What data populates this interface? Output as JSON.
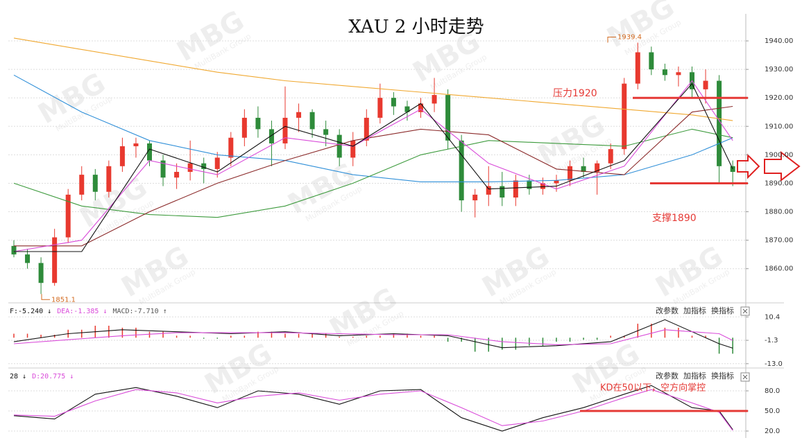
{
  "header": {
    "title": "XAU 2 小时走势"
  },
  "watermark": {
    "logo": "MBG",
    "text": "MultiBank Group"
  },
  "toolbar": {
    "buttons": [
      "改参数",
      "加指标",
      "换指标"
    ]
  },
  "chart_data": [
    {
      "type": "candlestick",
      "up_color": "#e8392f",
      "down_color": "#2e8b3a",
      "grid": true,
      "ylim": [
        1848,
        1949.5
      ],
      "yticks": [
        {
          "value": 1860,
          "label": "1860.00"
        },
        {
          "value": 1870,
          "label": "1870.00"
        },
        {
          "value": 1880,
          "label": "1880.00"
        },
        {
          "value": 1890,
          "label": "1890.00"
        },
        {
          "value": 1900,
          "label": "1900.00"
        },
        {
          "value": 1910,
          "label": "1910.00"
        },
        {
          "value": 1920,
          "label": "1920.00"
        },
        {
          "value": 1930,
          "label": "1930.00"
        },
        {
          "value": 1940,
          "label": "1940.00"
        }
      ],
      "ohlc": [
        [
          1868,
          1870,
          1864,
          1865
        ],
        [
          1865,
          1867,
          1860,
          1862
        ],
        [
          1862,
          1864,
          1851.1,
          1855
        ],
        [
          1855,
          1874,
          1854,
          1871
        ],
        [
          1871,
          1888,
          1869,
          1886
        ],
        [
          1886,
          1896,
          1884,
          1893
        ],
        [
          1893,
          1895,
          1884,
          1887
        ],
        [
          1887,
          1898,
          1885,
          1896
        ],
        [
          1896,
          1906,
          1894,
          1903
        ],
        [
          1903,
          1906,
          1899,
          1904
        ],
        [
          1904,
          1905,
          1896,
          1898
        ],
        [
          1898,
          1900,
          1889,
          1892
        ],
        [
          1892,
          1897,
          1888,
          1894
        ],
        [
          1894,
          1905,
          1891,
          1897
        ],
        [
          1897,
          1899,
          1890,
          1895
        ],
        [
          1895,
          1901,
          1892,
          1899
        ],
        [
          1899,
          1908,
          1896,
          1906
        ],
        [
          1906,
          1916,
          1903,
          1913
        ],
        [
          1913,
          1917,
          1906,
          1909
        ],
        [
          1909,
          1912,
          1896,
          1904
        ],
        [
          1904,
          1924,
          1902,
          1913
        ],
        [
          1913,
          1918,
          1908,
          1915
        ],
        [
          1915,
          1916,
          1906,
          1909
        ],
        [
          1909,
          1912,
          1903,
          1907
        ],
        [
          1907,
          1909,
          1896,
          1899
        ],
        [
          1899,
          1908,
          1896,
          1905
        ],
        [
          1905,
          1916,
          1903,
          1913
        ],
        [
          1913,
          1925,
          1911,
          1920
        ],
        [
          1920,
          1922,
          1914,
          1917
        ],
        [
          1917,
          1919,
          1912,
          1915
        ],
        [
          1915,
          1920,
          1913,
          1918
        ],
        [
          1918,
          1927,
          1915,
          1921
        ],
        [
          1921,
          1923,
          1902,
          1905
        ],
        [
          1905,
          1907,
          1880,
          1884
        ],
        [
          1884,
          1888,
          1878,
          1886
        ],
        [
          1886,
          1896,
          1882,
          1889
        ],
        [
          1889,
          1894,
          1882,
          1885
        ],
        [
          1885,
          1893,
          1882,
          1891
        ],
        [
          1891,
          1893,
          1886,
          1888
        ],
        [
          1888,
          1892,
          1886,
          1890
        ],
        [
          1890,
          1893,
          1887,
          1891
        ],
        [
          1891,
          1898,
          1889,
          1896
        ],
        [
          1896,
          1899,
          1892,
          1894
        ],
        [
          1894,
          1898,
          1886,
          1897
        ],
        [
          1897,
          1904,
          1895,
          1902
        ],
        [
          1902,
          1927,
          1900,
          1925
        ],
        [
          1925,
          1939.4,
          1923,
          1936
        ],
        [
          1936,
          1938,
          1928,
          1930
        ],
        [
          1930,
          1932,
          1926,
          1928
        ],
        [
          1928,
          1931,
          1924,
          1929
        ],
        [
          1929,
          1931,
          1920,
          1923
        ],
        [
          1923,
          1930,
          1918,
          1926
        ],
        [
          1926,
          1928,
          1890,
          1896
        ],
        [
          1896,
          1898,
          1889,
          1894
        ]
      ],
      "lines": [
        {
          "color": "#f0a830",
          "x": [
            0,
            5,
            10,
            15,
            20,
            25,
            30,
            35,
            40,
            45,
            50,
            53
          ],
          "values": [
            1941,
            1937,
            1933,
            1929,
            1926,
            1924,
            1922,
            1920,
            1918,
            1916,
            1914,
            1912
          ]
        },
        {
          "color": "#2f8fd8",
          "x": [
            0,
            5,
            10,
            15,
            20,
            25,
            30,
            35,
            40,
            45,
            50,
            53
          ],
          "values": [
            1928,
            1915,
            1905,
            1900,
            1898,
            1893,
            1890.5,
            1890.5,
            1891,
            1893,
            1900,
            1906
          ]
        },
        {
          "color": "#3c9a3c",
          "x": [
            0,
            5,
            10,
            15,
            20,
            25,
            30,
            35,
            40,
            45,
            50,
            53
          ],
          "values": [
            1890,
            1882,
            1879,
            1878,
            1882,
            1890,
            1900,
            1905,
            1904,
            1903,
            1909,
            1906
          ]
        },
        {
          "color": "#8b2a2a",
          "x": [
            0,
            5,
            10,
            15,
            20,
            25,
            30,
            35,
            40,
            45,
            50,
            53
          ],
          "values": [
            1868,
            1868,
            1880,
            1890,
            1898,
            1905,
            1909,
            1907,
            1895,
            1893,
            1915,
            1917
          ]
        },
        {
          "color": "#d94ad9",
          "x": [
            0,
            5,
            10,
            15,
            20,
            25,
            30,
            35,
            40,
            45,
            50,
            53
          ],
          "values": [
            1866,
            1870,
            1898,
            1893,
            1906,
            1903,
            1916,
            1897,
            1888,
            1896,
            1926,
            1905
          ]
        },
        {
          "color": "#111111",
          "x": [
            0,
            5,
            10,
            15,
            20,
            25,
            30,
            35,
            40,
            45,
            50,
            53
          ],
          "values": [
            1866,
            1866,
            1902,
            1894,
            1910,
            1903,
            1918,
            1888,
            1889,
            1898,
            1925,
            1895
          ]
        }
      ],
      "annotations": [
        {
          "text": "压力1920",
          "value": 1920
        },
        {
          "text": "支撑1890",
          "value": 1890
        },
        {
          "text": "1939.4",
          "value": 1939.4
        },
        {
          "text": "1851.1",
          "value": 1851.1
        }
      ]
    },
    {
      "type": "macd",
      "legend": [
        "F:-5.240 ↓",
        "DEA:-1.385 ↓",
        "MACD:-7.710 ↑"
      ],
      "ylim": [
        -14.8,
        16.4
      ],
      "yticks": [
        10.4,
        -1.3,
        {
          "value": -13,
          "label": "-13.0"
        }
      ],
      "grid": true,
      "up_color": "#e8392f",
      "down_color": "#2e8b3a",
      "histogram": {
        "x": [
          0,
          2,
          4,
          6,
          8,
          10,
          12,
          14,
          16,
          18,
          20,
          22,
          24,
          26,
          28,
          30,
          32,
          34,
          36,
          38,
          40,
          42,
          44,
          46,
          48,
          50,
          52
        ],
        "values": [
          2,
          1.5,
          4,
          6,
          5,
          3,
          1,
          -0.5,
          1,
          3,
          2,
          2,
          0.5,
          1,
          2,
          1,
          -2,
          -7,
          -6,
          -4,
          -2,
          -1,
          1,
          7,
          5,
          1,
          -8
        ]
      },
      "lines": [
        {
          "color": "#111111",
          "x": [
            0,
            4,
            8,
            12,
            16,
            20,
            24,
            28,
            32,
            36,
            40,
            44,
            48,
            52,
            53
          ],
          "values": [
            -2,
            2,
            4,
            3,
            2,
            3,
            1,
            2,
            1,
            -5,
            -4,
            -2,
            9,
            -3,
            -5.24
          ]
        },
        {
          "color": "#d94ad9",
          "x": [
            0,
            4,
            8,
            12,
            16,
            20,
            24,
            28,
            32,
            36,
            40,
            44,
            48,
            52,
            53
          ],
          "values": [
            -3,
            -1,
            1,
            2.5,
            2.5,
            2.5,
            2,
            1.5,
            1.5,
            -2,
            -3.5,
            -3,
            4,
            2,
            -1.385
          ]
        }
      ]
    },
    {
      "type": "kd",
      "legend": [
        "28 ↓",
        "D:20.775 ↓"
      ],
      "ylim": [
        11.7,
        110
      ],
      "yticks": [
        {
          "value": 80,
          "label": "80.0"
        },
        {
          "value": 50,
          "label": "50.0"
        },
        {
          "value": 20,
          "label": "20.0"
        }
      ],
      "grid": true,
      "lines": [
        {
          "color": "#111111",
          "x": [
            0,
            3,
            6,
            9,
            12,
            15,
            18,
            21,
            24,
            27,
            30,
            33,
            36,
            39,
            42,
            45,
            47,
            50,
            52,
            53
          ],
          "values": [
            43,
            38,
            75,
            85,
            72,
            55,
            80,
            75,
            60,
            80,
            82,
            40,
            20,
            40,
            55,
            75,
            88,
            55,
            50,
            22
          ]
        },
        {
          "color": "#d94ad9",
          "x": [
            0,
            3,
            6,
            9,
            12,
            15,
            18,
            21,
            24,
            27,
            30,
            33,
            36,
            39,
            42,
            45,
            47,
            50,
            52,
            53
          ],
          "values": [
            44,
            42,
            65,
            82,
            77,
            62,
            72,
            77,
            66,
            75,
            80,
            55,
            28,
            35,
            50,
            70,
            82,
            62,
            48,
            20.775
          ]
        }
      ],
      "annotations": [
        {
          "text": "KD在50以下，空方向掌控",
          "value": 50
        }
      ]
    }
  ]
}
